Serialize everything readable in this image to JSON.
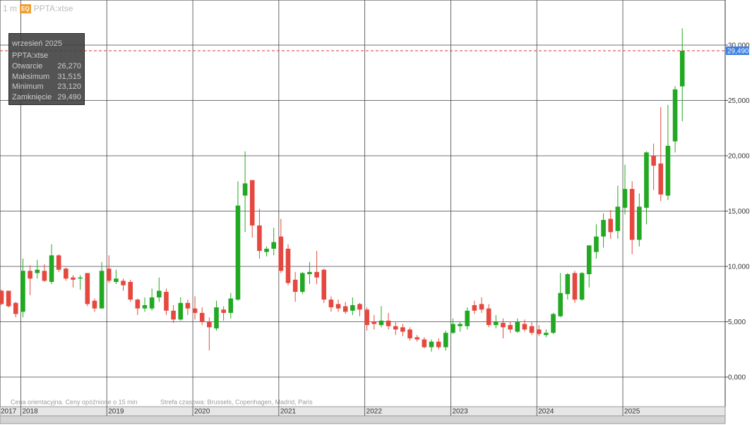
{
  "header": {
    "interval": "1 m",
    "badge": "EQ",
    "symbol": "PPTA:xtse"
  },
  "tooltip": {
    "date": "wrzesień 2025",
    "symbol": "PPTA:xtse",
    "rows": [
      {
        "label": "Otwarcie",
        "value": "26,270"
      },
      {
        "label": "Maksimum",
        "value": "31,515"
      },
      {
        "label": "Minimum",
        "value": "23,120"
      },
      {
        "label": "Zamknięcie",
        "value": "29,490"
      }
    ]
  },
  "footer": {
    "note": "Cena orientacyjna. Ceny opóźnione o 15 min",
    "timezone": "Strefa czasowa: Brussels, Copenhagen, Madrid, Paris"
  },
  "chart_data": {
    "type": "candlestick",
    "up_color": "#22a822",
    "down_color": "#e5483f",
    "grid": true,
    "categories": [
      "2017",
      null,
      null,
      "2018",
      null,
      null,
      null,
      null,
      null,
      null,
      null,
      null,
      null,
      null,
      null,
      "2019",
      null,
      null,
      null,
      null,
      null,
      null,
      null,
      null,
      null,
      null,
      null,
      "2020",
      null,
      null,
      null,
      null,
      null,
      null,
      null,
      null,
      null,
      null,
      null,
      "2021",
      null,
      null,
      null,
      null,
      null,
      null,
      null,
      null,
      null,
      null,
      null,
      "2022",
      null,
      null,
      null,
      null,
      null,
      null,
      null,
      null,
      null,
      null,
      null,
      "2023",
      null,
      null,
      null,
      null,
      null,
      null,
      null,
      null,
      null,
      null,
      null,
      "2024",
      null,
      null,
      null,
      null,
      null,
      null,
      null,
      null,
      null,
      null,
      null,
      "2025",
      null,
      null,
      null,
      null,
      null,
      null,
      null,
      null
    ],
    "open": [
      7.8,
      7.8,
      6.7,
      5.9,
      9.6,
      9.4,
      9.6,
      8.6,
      11.0,
      9.8,
      9.0,
      8.9,
      9.4,
      6.9,
      6.2,
      9.8,
      8.6,
      8.7,
      8.6,
      7.0,
      6.2,
      6.2,
      7.2,
      7.7,
      6.0,
      5.2,
      6.7,
      6.2,
      5.8,
      5.0,
      4.4,
      6.1,
      5.8,
      7.0,
      16.4,
      17.8,
      13.7,
      11.3,
      11.6,
      12.7,
      11.6,
      8.8,
      7.7,
      9.3,
      9.5,
      9.7,
      7.0,
      6.6,
      6.4,
      6.0,
      6.6,
      6.1,
      5.0,
      4.7,
      5.1,
      4.6,
      4.5,
      4.3,
      3.6,
      3.4,
      2.7,
      3.2,
      2.7,
      4.0,
      4.6,
      4.6,
      6.5,
      6.6,
      6.2,
      4.7,
      4.9,
      4.7,
      4.1,
      4.8,
      4.6,
      4.3,
      3.8,
      4.0,
      5.5,
      7.5,
      9.4,
      7.0,
      9.3,
      11.3,
      12.7,
      14.3,
      13.2,
      15.3,
      17.0,
      12.4,
      15.3,
      20.0,
      19.3,
      16.4,
      21.3,
      26.27
    ],
    "high": [
      7.9,
      7.8,
      6.8,
      10.7,
      10.1,
      10.6,
      10.2,
      12.0,
      11.1,
      9.9,
      9.2,
      9.2,
      9.4,
      7.1,
      10.4,
      11.0,
      9.7,
      8.9,
      8.8,
      7.1,
      7.2,
      8.0,
      9.0,
      8.0,
      6.5,
      7.2,
      7.0,
      7.3,
      6.3,
      5.4,
      6.9,
      6.4,
      7.6,
      17.7,
      20.4,
      17.8,
      15.2,
      11.8,
      13.5,
      14.3,
      12.0,
      9.5,
      9.5,
      10.4,
      11.4,
      9.8,
      7.3,
      7.0,
      6.8,
      7.2,
      6.7,
      6.3,
      5.6,
      6.4,
      5.8,
      5.0,
      4.8,
      4.5,
      3.8,
      3.6,
      3.4,
      3.5,
      4.2,
      5.3,
      5.0,
      6.3,
      6.9,
      7.2,
      6.6,
      5.6,
      5.3,
      5.0,
      5.3,
      5.2,
      5.0,
      4.7,
      4.3,
      5.8,
      9.4,
      9.4,
      9.6,
      9.5,
      11.9,
      13.8,
      14.8,
      15.1,
      17.3,
      19.2,
      17.7,
      16.6,
      20.4,
      21.1,
      24.4,
      24.6,
      26.3,
      31.515
    ],
    "low": [
      6.5,
      6.3,
      5.4,
      5.4,
      7.4,
      8.9,
      8.6,
      8.4,
      9.5,
      8.7,
      8.1,
      7.9,
      6.4,
      5.9,
      6.2,
      8.5,
      8.4,
      7.8,
      6.8,
      5.6,
      5.9,
      6.0,
      6.8,
      5.6,
      4.9,
      5.1,
      5.6,
      5.2,
      4.7,
      2.4,
      4.2,
      5.1,
      5.3,
      6.9,
      13.1,
      12.6,
      10.7,
      10.9,
      11.0,
      9.4,
      8.3,
      6.8,
      7.5,
      8.4,
      8.4,
      6.7,
      5.9,
      5.9,
      5.7,
      5.6,
      5.5,
      4.2,
      4.3,
      4.5,
      4.3,
      3.8,
      3.7,
      3.3,
      3.2,
      2.6,
      2.3,
      2.5,
      2.4,
      3.9,
      4.1,
      4.3,
      5.7,
      5.8,
      4.5,
      4.4,
      3.5,
      4.0,
      4.0,
      4.1,
      3.8,
      3.7,
      3.6,
      3.9,
      5.4,
      7.0,
      6.7,
      6.9,
      8.1,
      10.7,
      11.7,
      12.5,
      12.5,
      14.7,
      11.1,
      11.8,
      13.8,
      16.9,
      15.9,
      16.0,
      20.3,
      23.12
    ],
    "close": [
      6.6,
      6.4,
      5.7,
      9.6,
      8.9,
      9.7,
      8.7,
      11.0,
      9.7,
      8.9,
      8.8,
      9.0,
      6.6,
      6.2,
      9.6,
      8.7,
      8.9,
      8.3,
      7.0,
      6.2,
      6.5,
      7.2,
      7.8,
      6.0,
      5.2,
      6.7,
      6.2,
      5.8,
      5.0,
      4.5,
      6.3,
      5.8,
      7.1,
      15.5,
      17.5,
      13.7,
      11.4,
      11.6,
      12.2,
      9.6,
      8.5,
      7.7,
      9.4,
      9.5,
      9.0,
      7.0,
      6.3,
      6.2,
      5.9,
      6.5,
      6.1,
      4.7,
      4.8,
      5.1,
      4.6,
      4.3,
      4.1,
      3.5,
      3.4,
      2.7,
      3.2,
      2.7,
      4.0,
      4.8,
      4.8,
      6.0,
      6.0,
      6.1,
      4.7,
      5.0,
      4.5,
      4.3,
      5.0,
      4.3,
      4.0,
      3.9,
      4.0,
      5.7,
      7.6,
      9.3,
      7.0,
      9.4,
      11.9,
      12.7,
      14.2,
      13.1,
      15.4,
      17.0,
      12.4,
      15.4,
      20.3,
      19.1,
      16.5,
      20.9,
      26.0,
      29.49
    ],
    "ylim": [
      -2.675,
      34.076
    ],
    "yticks": [
      {
        "value": 0,
        "label": "0,000"
      },
      {
        "value": 5,
        "label": "5,000"
      },
      {
        "value": 10,
        "label": "10,000"
      },
      {
        "value": 15,
        "label": "15,000"
      },
      {
        "value": 20,
        "label": "20,000"
      },
      {
        "value": 25,
        "label": "25,000"
      },
      {
        "value": 30,
        "label": "30,000"
      }
    ],
    "last_price": {
      "value": 29.49,
      "label": "29,490"
    }
  }
}
